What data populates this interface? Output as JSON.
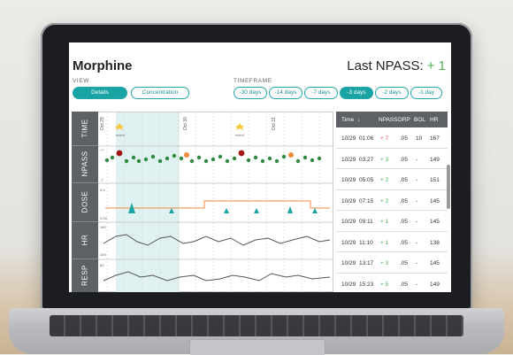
{
  "header": {
    "title": "Morphine",
    "npass_label": "Last NPASS:",
    "npass_value": "+ 1"
  },
  "view": {
    "label": "VIEW",
    "buttons": [
      {
        "label": "Details",
        "active": true
      },
      {
        "label": "Concentration",
        "active": false
      }
    ]
  },
  "timeframe": {
    "label": "TIMEFRAME",
    "buttons": [
      {
        "label": "-30 days",
        "active": false
      },
      {
        "label": "-14 days",
        "active": false
      },
      {
        "label": "-7 days",
        "active": false
      },
      {
        "label": "-3 days",
        "active": true
      },
      {
        "label": "-2 days",
        "active": false
      },
      {
        "label": "-1 day",
        "active": false
      }
    ]
  },
  "chart": {
    "row_labels": [
      "TIME",
      "NPASS",
      "DOSE",
      "HR",
      "RESP"
    ],
    "dates": [
      "Oct 29",
      "Oct 30",
      "Oct 31"
    ],
    "event_label": "event",
    "npass_axis": [
      "+7",
      "0",
      "-7"
    ],
    "dose_axis": [
      "0.6",
      "0.03"
    ],
    "hr_axis": [
      "180",
      "100"
    ],
    "resp_axis": [
      "60"
    ]
  },
  "table": {
    "headers": [
      "Time",
      "NPASS",
      "DRP",
      "BOL",
      "HR"
    ],
    "rows": [
      {
        "date": "10/29",
        "time": "01:06",
        "npass": "+ 7",
        "drp": ".05",
        "bol": "10",
        "hr": "167"
      },
      {
        "date": "10/29",
        "time": "03:27",
        "npass": "+ 3",
        "drp": ".05",
        "bol": "-",
        "hr": "149"
      },
      {
        "date": "10/29",
        "time": "05:05",
        "npass": "+ 2",
        "drp": ".05",
        "bol": "-",
        "hr": "151"
      },
      {
        "date": "10/29",
        "time": "07:15",
        "npass": "+ 2",
        "drp": ".05",
        "bol": "-",
        "hr": "145"
      },
      {
        "date": "10/29",
        "time": "09:11",
        "npass": "+ 1",
        "drp": ".05",
        "bol": "-",
        "hr": "145"
      },
      {
        "date": "10/29",
        "time": "11:10",
        "npass": "+ 1",
        "drp": ".05",
        "bol": "-",
        "hr": "138"
      },
      {
        "date": "10/29",
        "time": "13:17",
        "npass": "+ 3",
        "drp": ".05",
        "bol": "-",
        "hr": "145"
      },
      {
        "date": "10/29",
        "time": "15:23",
        "npass": "+ 5",
        "drp": ".05",
        "bol": "-",
        "hr": "149"
      }
    ]
  },
  "colors": {
    "accent": "#1aa3a3",
    "positive": "#4caf50",
    "negative": "#e05a4a",
    "dark_red": "#a31515",
    "orange": "#f08a3c",
    "line": "#555"
  }
}
